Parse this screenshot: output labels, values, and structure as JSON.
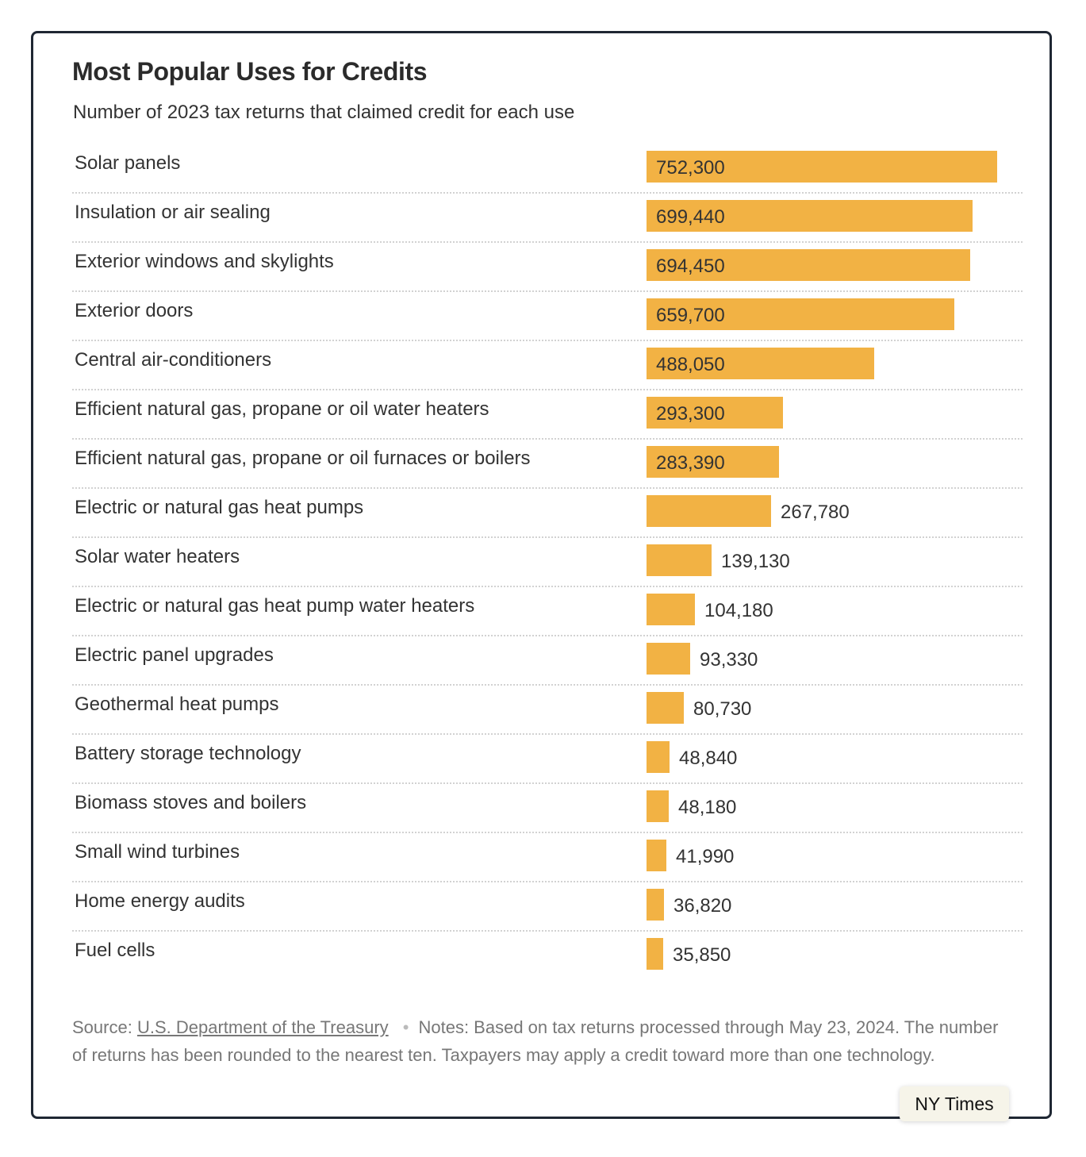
{
  "title": "Most Popular Uses for Credits",
  "subtitle": "Number of 2023 tax returns that claimed credit for each use",
  "footer": {
    "source_prefix": "Source:",
    "source_link": "U.S. Department of the Treasury",
    "separator": "•",
    "notes": "Notes: Based on tax returns processed through May 23, 2024. The number of returns has been rounded to the nearest ten. Taxpayers may apply a credit toward more than one technology."
  },
  "badge": "NY Times",
  "colors": {
    "bar": "#f2b244",
    "border": "#1f2733",
    "divider": "#d2d2d2"
  },
  "chart_data": {
    "type": "bar",
    "orientation": "horizontal",
    "title": "Most Popular Uses for Credits",
    "subtitle": "Number of 2023 tax returns that claimed credit for each use",
    "xlim": [
      0,
      752300
    ],
    "grid": false,
    "categories": [
      "Solar panels",
      "Insulation or air sealing",
      "Exterior windows and skylights",
      "Exterior doors",
      "Central air-conditioners",
      "Efficient natural gas, propane or oil water heaters",
      "Efficient natural gas, propane or oil furnaces or boilers",
      "Electric or natural gas heat pumps",
      "Solar water heaters",
      "Electric or natural gas heat pump water heaters",
      "Electric panel upgrades",
      "Geothermal heat pumps",
      "Battery storage technology",
      "Biomass stoves and boilers",
      "Small wind turbines",
      "Home energy audits",
      "Fuel cells"
    ],
    "values": [
      752300,
      699440,
      694450,
      659700,
      488050,
      293300,
      283390,
      267780,
      139130,
      104180,
      93330,
      80730,
      48840,
      48180,
      41990,
      36820,
      35850
    ],
    "value_labels": [
      "752,300",
      "699,440",
      "694,450",
      "659,700",
      "488,050",
      "293,300",
      "283,390",
      "267,780",
      "139,130",
      "104,180",
      "93,330",
      "80,730",
      "48,840",
      "48,180",
      "41,990",
      "36,820",
      "35,850"
    ]
  }
}
